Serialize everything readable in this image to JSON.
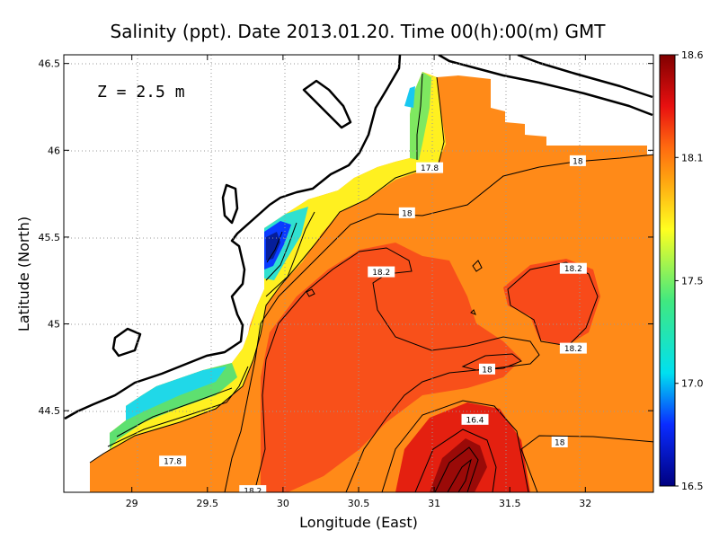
{
  "chart_data": {
    "type": "heatmap",
    "title": "Salinity (ppt). Date 2013.01.20. Time 00(h):00(m) GMT",
    "xlabel": "Longitude (East)",
    "ylabel": "Latitude (North)",
    "annotation": "Z = 2.5 m",
    "xlim": [
      28.55,
      32.45
    ],
    "ylim": [
      44.03,
      46.55
    ],
    "x_ticks": [
      29,
      29.5,
      30,
      30.5,
      31,
      31.5,
      32
    ],
    "x_tick_labels": [
      "29",
      "29.5",
      "30",
      "30.5",
      "31",
      "31.5",
      "32"
    ],
    "y_ticks": [
      44.5,
      45,
      45.5,
      46,
      46.5
    ],
    "y_tick_labels": [
      "44.5",
      "45",
      "45.5",
      "46",
      "46.5"
    ],
    "colorbar": {
      "ticks": [
        16.5,
        17.0,
        17.5,
        18.1,
        18.6
      ],
      "tick_labels": [
        "16.5",
        "17.0",
        "17.5",
        "18.1",
        "18.6"
      ],
      "stops": [
        {
          "value": 16.5,
          "color": "#000080"
        },
        {
          "value": 16.8,
          "color": "#0a2cff"
        },
        {
          "value": 17.05,
          "color": "#00e0f0"
        },
        {
          "value": 17.4,
          "color": "#40e880"
        },
        {
          "value": 17.75,
          "color": "#ffff20"
        },
        {
          "value": 18.0,
          "color": "#ffa010"
        },
        {
          "value": 18.15,
          "color": "#ff6a10"
        },
        {
          "value": 18.35,
          "color": "#e81010"
        },
        {
          "value": 18.6,
          "color": "#800000"
        }
      ]
    },
    "contour_labels": [
      {
        "text": "17.8",
        "lon": 30.97,
        "lat": 45.9
      },
      {
        "text": "18",
        "lon": 31.95,
        "lat": 45.94
      },
      {
        "text": "18",
        "lon": 30.82,
        "lat": 45.64
      },
      {
        "text": "18.2",
        "lon": 30.65,
        "lat": 45.3
      },
      {
        "text": "18.2",
        "lon": 31.92,
        "lat": 45.32
      },
      {
        "text": "18.2",
        "lon": 31.92,
        "lat": 44.86
      },
      {
        "text": "18",
        "lon": 31.35,
        "lat": 44.74
      },
      {
        "text": "16.4",
        "lon": 31.27,
        "lat": 44.45
      },
      {
        "text": "18",
        "lon": 31.83,
        "lat": 44.32
      },
      {
        "text": "17.8",
        "lon": 29.27,
        "lat": 44.21
      },
      {
        "text": "18.2",
        "lon": 29.8,
        "lat": 44.04
      }
    ],
    "grid": true,
    "colorbar_placement": "right"
  }
}
